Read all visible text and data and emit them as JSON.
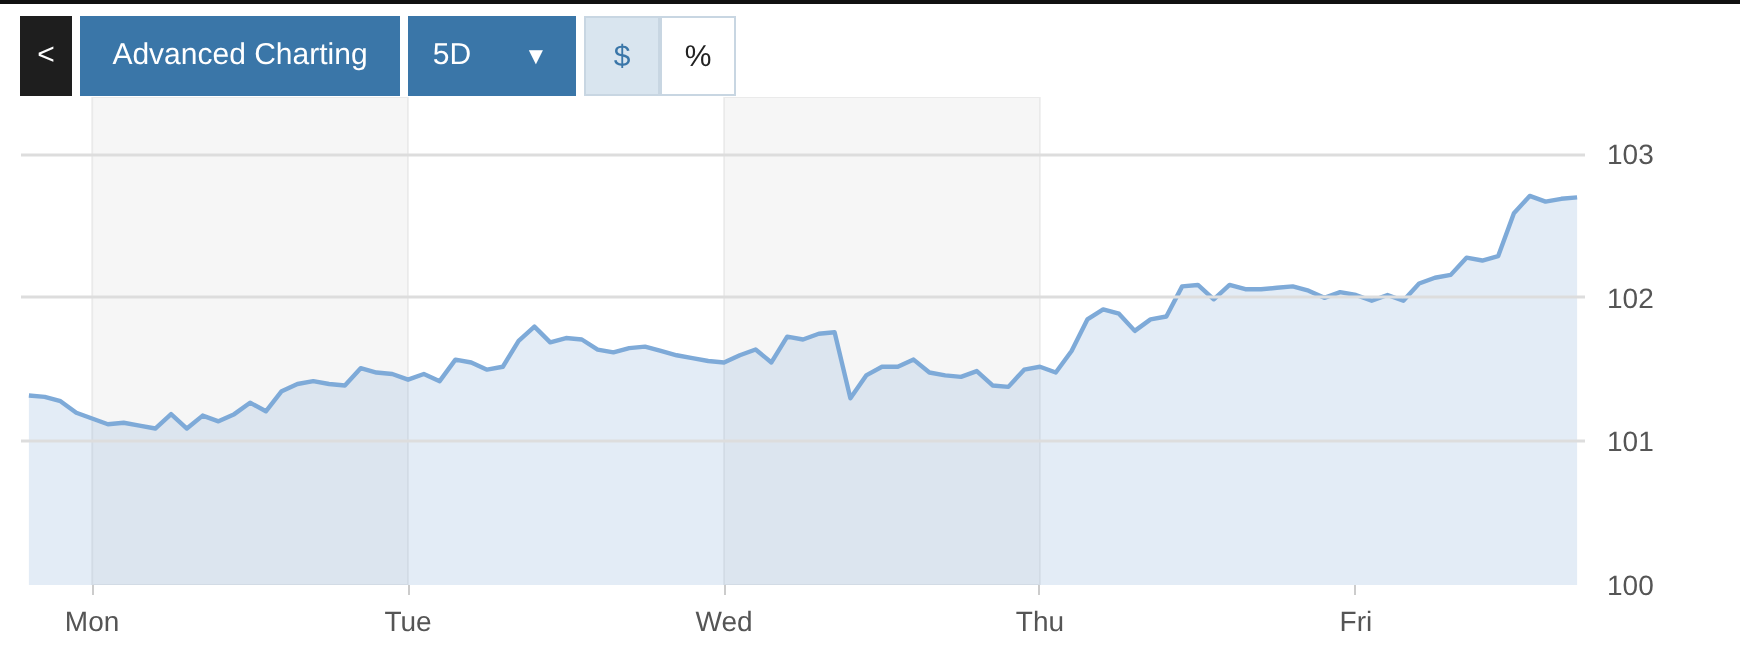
{
  "chart_data": {
    "type": "area",
    "color": "#7eaad8",
    "categories": [
      null,
      null,
      null,
      null,
      "Mon",
      null,
      null,
      null,
      null,
      null,
      null,
      null,
      null,
      null,
      null,
      null,
      null,
      null,
      null,
      null,
      null,
      null,
      null,
      null,
      "Tue",
      null,
      null,
      null,
      null,
      null,
      null,
      null,
      null,
      null,
      null,
      null,
      null,
      null,
      null,
      null,
      null,
      null,
      null,
      null,
      "Wed",
      null,
      null,
      null,
      null,
      null,
      null,
      null,
      null,
      null,
      null,
      null,
      null,
      null,
      null,
      null,
      null,
      null,
      null,
      null,
      "Thu",
      null,
      null,
      null,
      null,
      null,
      null,
      null,
      null,
      null,
      null,
      null,
      null,
      null,
      null,
      null,
      null,
      null,
      null,
      null,
      "Fri",
      null,
      null,
      null,
      null,
      null,
      null,
      null,
      null,
      null,
      null,
      null,
      null,
      null,
      null
    ],
    "values": [
      101.32,
      101.31,
      101.28,
      101.2,
      101.16,
      101.12,
      101.13,
      101.11,
      101.09,
      101.19,
      101.09,
      101.18,
      101.14,
      101.19,
      101.27,
      101.21,
      101.35,
      101.4,
      101.42,
      101.4,
      101.39,
      101.51,
      101.48,
      101.47,
      101.43,
      101.47,
      101.42,
      101.57,
      101.55,
      101.5,
      101.52,
      101.7,
      101.8,
      101.69,
      101.72,
      101.71,
      101.64,
      101.62,
      101.65,
      101.66,
      101.63,
      101.6,
      101.58,
      101.56,
      101.55,
      101.6,
      101.64,
      101.55,
      101.73,
      101.71,
      101.75,
      101.76,
      101.3,
      101.46,
      101.52,
      101.52,
      101.57,
      101.48,
      101.46,
      101.45,
      101.49,
      101.39,
      101.38,
      101.5,
      101.52,
      101.48,
      101.63,
      101.85,
      101.92,
      101.89,
      101.77,
      101.85,
      101.87,
      102.08,
      102.09,
      101.99,
      102.09,
      102.06,
      102.06,
      102.07,
      102.08,
      102.05,
      102.0,
      102.04,
      102.02,
      101.98,
      102.02,
      101.98,
      102.1,
      102.14,
      102.16,
      102.28,
      102.26,
      102.29,
      102.59,
      102.71,
      102.67,
      102.69,
      102.7
    ],
    "ylim": [
      100,
      103
    ],
    "yticks": [
      100,
      101,
      102,
      103
    ],
    "grid": "y",
    "bands": [
      {
        "axis": "x",
        "from": "Mon",
        "to": "Tue",
        "color": "#f6f6f6"
      },
      {
        "axis": "x",
        "from": "Wed",
        "to": "Thu",
        "color": "#f6f6f6"
      }
    ],
    "annotations": [
      "<",
      "Advanced Charting",
      "5D",
      "▼",
      "$",
      "%"
    ]
  }
}
